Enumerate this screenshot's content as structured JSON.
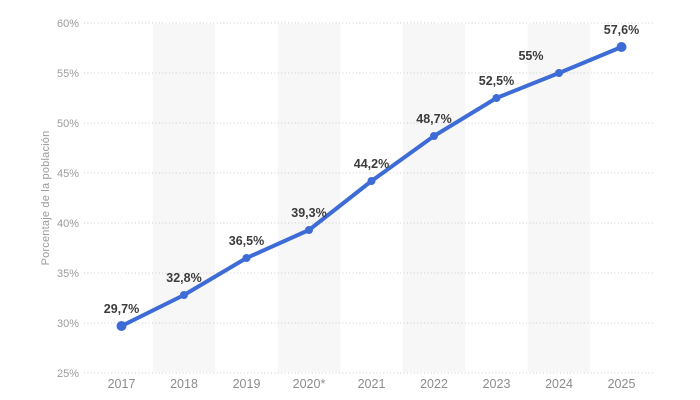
{
  "chart_data": {
    "type": "line",
    "title": "",
    "ylabel": "Porcentaje de la población",
    "xlabel": "",
    "categories": [
      "2017",
      "2018",
      "2019",
      "2020*",
      "2021",
      "2022",
      "2023",
      "2024",
      "2025"
    ],
    "values": [
      29.7,
      32.8,
      36.5,
      39.3,
      44.2,
      48.7,
      52.5,
      55,
      57.6
    ],
    "point_labels": [
      "29,7%",
      "32,8%",
      "36,5%",
      "39,3%",
      "44,2%",
      "48,7%",
      "52,5%",
      "55%",
      "57,6%"
    ],
    "ylim": [
      25,
      60
    ],
    "ytick_step": 5,
    "ytick_labels": [
      "25%",
      "30%",
      "35%",
      "40%",
      "45%",
      "50%",
      "55%",
      "60%"
    ],
    "grid": "dotted-horizontal",
    "legend": "none",
    "shaded_column_indexes": [
      1,
      3,
      5,
      7
    ],
    "label_dx": [
      0,
      0,
      0,
      0,
      0,
      0,
      0,
      -28,
      0
    ],
    "colors": {
      "line": "#3e6cd6",
      "band": "#f7f7f7",
      "gridline": "#cccccc",
      "ytick_text": "#9b9b9b",
      "xtick_text": "#8c8c8c",
      "point_label_text": "#3c3c3c",
      "background": "#ffffff"
    }
  }
}
